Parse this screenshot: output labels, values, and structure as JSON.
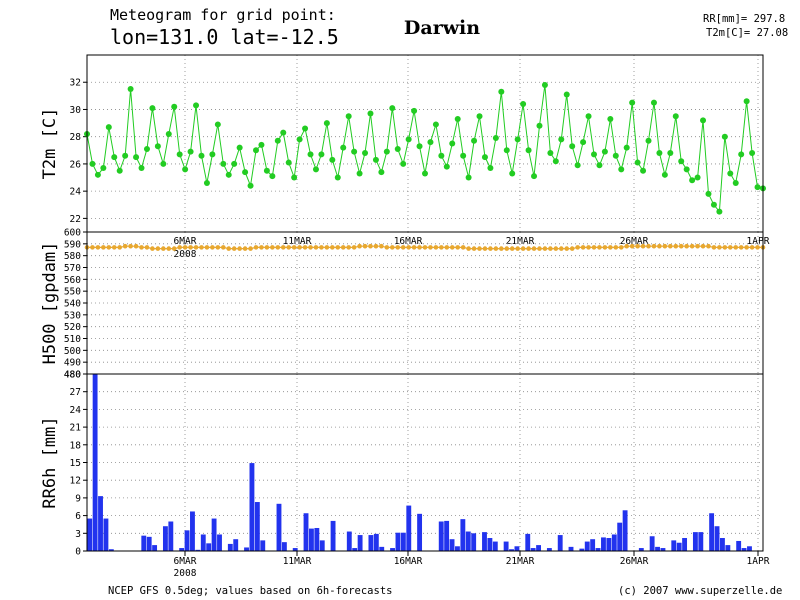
{
  "header": {
    "title_line1": "Meteogram for grid point:",
    "title_line2": "lon=131.0  lat=-12.5",
    "location": "Darwin",
    "stat_rr": "RR[mm]= 297.8",
    "stat_t2m": "T2m[C]= 27.08"
  },
  "footer": {
    "source": "NCEP GFS 0.5deg; values based on 6h-forecasts",
    "copyright": "(c) 2007 www.superzelle.de"
  },
  "colors": {
    "t2m": "#22cc22",
    "h500": "#e8a830",
    "rr": "#2233ee",
    "grid": "#888888"
  },
  "chart_data": [
    {
      "type": "line",
      "ylabel": "T2m [C]",
      "ylim": [
        21,
        34
      ],
      "yticks": [
        22,
        24,
        26,
        28,
        30,
        32
      ],
      "grid": true,
      "series": [
        {
          "values": [
            28.2,
            26.0,
            25.2,
            25.7,
            28.7,
            26.5,
            25.5,
            26.6,
            31.5,
            26.5,
            25.7,
            27.1,
            30.1,
            27.3,
            26.0,
            28.2,
            30.2,
            26.7,
            25.6,
            26.9,
            30.3,
            26.6,
            24.6,
            26.7,
            28.9,
            26.0,
            25.2,
            26.0,
            27.2,
            25.4,
            24.4,
            27.0,
            27.4,
            25.5,
            25.1,
            27.7,
            28.3,
            26.1,
            25.0,
            27.8,
            28.6,
            26.7,
            25.6,
            26.7,
            29.0,
            26.3,
            25.0,
            27.2,
            29.5,
            26.9,
            25.3,
            26.8,
            29.7,
            26.3,
            25.4,
            26.9,
            30.1,
            27.1,
            26.0,
            27.8,
            29.9,
            27.3,
            25.3,
            27.6,
            28.9,
            26.6,
            25.8,
            27.5,
            29.3,
            26.6,
            25.0,
            27.7,
            29.5,
            26.5,
            25.7,
            27.9,
            31.3,
            27.0,
            25.3,
            27.8,
            30.4,
            27.0,
            25.1,
            28.8,
            31.8,
            26.8,
            26.2,
            27.8,
            31.1,
            27.3,
            25.9,
            27.6,
            29.5,
            26.7,
            25.9,
            26.9,
            29.3,
            26.6,
            25.6,
            27.2,
            30.5,
            26.1,
            25.5,
            27.7,
            30.5,
            26.8,
            25.2,
            26.8,
            29.5,
            26.2,
            25.6,
            24.8,
            25.0,
            29.2,
            23.8,
            23.0,
            22.5,
            28.0,
            25.3,
            24.6,
            26.7,
            30.6,
            26.8,
            24.3,
            24.2
          ]
        }
      ]
    },
    {
      "type": "line",
      "ylabel": "H500 [gpdam]",
      "ylim": [
        480,
        600
      ],
      "yticks": [
        480,
        490,
        500,
        510,
        520,
        530,
        540,
        550,
        560,
        570,
        580,
        590,
        600
      ],
      "grid": true,
      "series": [
        {
          "values": [
            587,
            587,
            587,
            587,
            587,
            587,
            587,
            588,
            588,
            588,
            587,
            587,
            586,
            586,
            586,
            586,
            586,
            587,
            587,
            587,
            587,
            587,
            587,
            587,
            587,
            587,
            586,
            586,
            586,
            586,
            586,
            587,
            587,
            587,
            587,
            587,
            587,
            587,
            587,
            587,
            587,
            587,
            587,
            587,
            587,
            587,
            587,
            587,
            587,
            587,
            588,
            588,
            588,
            588,
            588,
            587,
            587,
            587,
            587,
            587,
            587,
            587,
            587,
            587,
            587,
            587,
            587,
            587,
            587,
            587,
            586,
            586,
            586,
            586,
            586,
            586,
            586,
            586,
            586,
            586,
            586,
            586,
            586,
            586,
            586,
            586,
            586,
            586,
            586,
            586,
            587,
            587,
            587,
            587,
            587,
            587,
            587,
            587,
            587,
            588,
            588,
            588,
            588,
            588,
            588,
            588,
            588,
            588,
            588,
            588,
            588,
            588,
            588,
            588,
            588,
            587,
            587,
            587,
            587,
            587,
            587,
            587,
            587,
            587,
            587
          ]
        }
      ]
    },
    {
      "type": "bar",
      "ylabel": "RR6h [mm]",
      "ylim": [
        0,
        30
      ],
      "yticks": [
        0,
        3,
        6,
        9,
        12,
        15,
        18,
        21,
        24,
        27,
        30
      ],
      "ytick_top_label": "480",
      "grid": true,
      "xtick_labels": [
        "6MAR",
        "11MAR",
        "16MAR",
        "21MAR",
        "26MAR",
        "1APR"
      ],
      "year_label": "2008",
      "series": [
        {
          "values": [
            5.5,
            30.0,
            9.3,
            5.5,
            0.3,
            0.0,
            0.0,
            0.0,
            0.0,
            0.0,
            2.6,
            2.4,
            1.0,
            0.0,
            4.2,
            5.0,
            0.0,
            0.5,
            3.5,
            6.7,
            0.2,
            2.8,
            1.3,
            5.5,
            2.8,
            0.0,
            1.2,
            2.0,
            0.0,
            0.6,
            14.9,
            8.3,
            1.8,
            0.0,
            0.0,
            8.0,
            1.5,
            0.0,
            0.5,
            0.0,
            6.4,
            3.8,
            3.9,
            1.8,
            0.0,
            5.1,
            0.0,
            0.0,
            3.3,
            0.5,
            2.7,
            0.0,
            2.7,
            2.9,
            0.7,
            0.0,
            0.5,
            3.1,
            3.1,
            7.7,
            0.0,
            6.3,
            0.0,
            0.0,
            0.0,
            5.0,
            5.1,
            2.0,
            0.8,
            5.4,
            3.3,
            3.0,
            0.0,
            3.2,
            2.2,
            1.6,
            0.0,
            1.6,
            0.3,
            0.8,
            0.0,
            2.9,
            0.5,
            1.0,
            0.0,
            0.5,
            0.0,
            2.7,
            0.0,
            0.7,
            0.0,
            0.4,
            1.6,
            2.0,
            0.5,
            2.3,
            2.2,
            2.8,
            4.8,
            6.9,
            0.0,
            0.0,
            0.5,
            0.0,
            2.5,
            0.7,
            0.5,
            0.0,
            1.8,
            1.4,
            2.2,
            0.0,
            3.2,
            3.2,
            0.0,
            6.4,
            4.2,
            2.2,
            1.0,
            0.0,
            1.7,
            0.5,
            0.8,
            0.0,
            0.0
          ]
        }
      ]
    }
  ]
}
